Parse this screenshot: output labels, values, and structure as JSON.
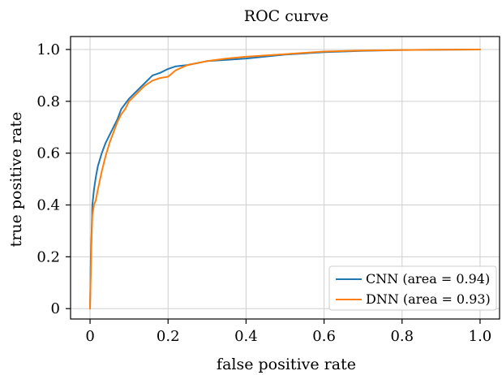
{
  "chart_data": {
    "type": "line",
    "title": "ROC curve",
    "xlabel": "false positive rate",
    "ylabel": "true positive rate",
    "xlim": [
      -0.05,
      1.05
    ],
    "ylim": [
      -0.04,
      1.05
    ],
    "xticks": [
      0,
      0.2,
      0.4,
      0.6,
      0.8,
      1.0
    ],
    "xtick_labels": [
      "0",
      "0.2",
      "0.4",
      "0.6",
      "0.8",
      "1.0"
    ],
    "yticks": [
      0,
      0.2,
      0.4,
      0.6,
      0.8,
      1.0
    ],
    "ytick_labels": [
      "0",
      "0.2",
      "0.4",
      "0.6",
      "0.8",
      "1.0"
    ],
    "grid": true,
    "legend_position": "lower-right",
    "series": [
      {
        "name": "CNN (area = 0.94)",
        "color": "#1f77b4",
        "x": [
          0,
          0.002,
          0.004,
          0.006,
          0.01,
          0.015,
          0.02,
          0.03,
          0.04,
          0.05,
          0.06,
          0.07,
          0.08,
          0.09,
          0.1,
          0.12,
          0.14,
          0.16,
          0.18,
          0.2,
          0.22,
          0.25,
          0.3,
          0.35,
          0.4,
          0.5,
          0.6,
          0.7,
          0.8,
          0.9,
          1.0
        ],
        "y": [
          0,
          0.2,
          0.3,
          0.4,
          0.46,
          0.51,
          0.55,
          0.6,
          0.64,
          0.67,
          0.7,
          0.73,
          0.77,
          0.79,
          0.81,
          0.84,
          0.87,
          0.9,
          0.91,
          0.925,
          0.935,
          0.94,
          0.955,
          0.96,
          0.965,
          0.98,
          0.99,
          0.995,
          0.998,
          0.999,
          1.0
        ]
      },
      {
        "name": "DNN (area = 0.93)",
        "color": "#ff7f0e",
        "x": [
          0,
          0.002,
          0.004,
          0.006,
          0.01,
          0.015,
          0.02,
          0.03,
          0.04,
          0.05,
          0.06,
          0.07,
          0.08,
          0.09,
          0.1,
          0.12,
          0.14,
          0.16,
          0.18,
          0.2,
          0.22,
          0.25,
          0.3,
          0.35,
          0.4,
          0.5,
          0.6,
          0.7,
          0.8,
          0.9,
          1.0
        ],
        "y": [
          0,
          0.15,
          0.28,
          0.36,
          0.4,
          0.42,
          0.46,
          0.53,
          0.59,
          0.64,
          0.68,
          0.72,
          0.75,
          0.77,
          0.8,
          0.83,
          0.86,
          0.88,
          0.89,
          0.895,
          0.92,
          0.94,
          0.955,
          0.965,
          0.972,
          0.982,
          0.992,
          0.996,
          0.998,
          0.999,
          1.0
        ]
      }
    ]
  }
}
